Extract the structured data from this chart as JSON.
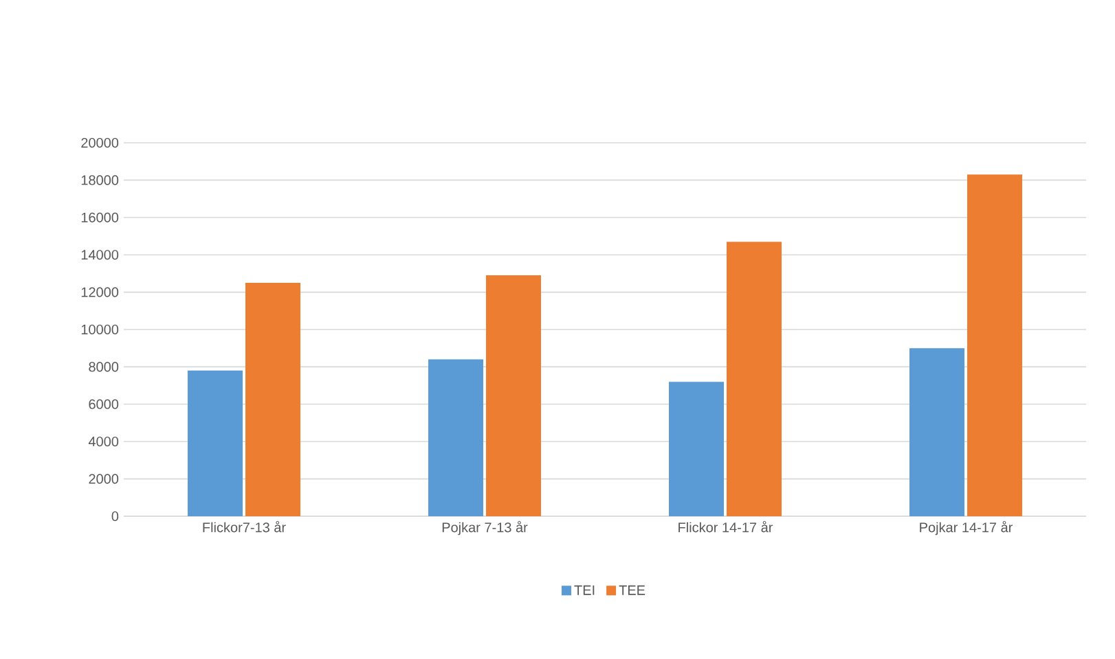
{
  "chart_data": {
    "type": "bar",
    "categories": [
      "Flickor7-13 år",
      "Pojkar 7-13 år",
      "Flickor 14-17 år",
      "Pojkar 14-17 år"
    ],
    "series": [
      {
        "name": "TEI",
        "color": "#5b9bd5",
        "values": [
          7800,
          8400,
          7200,
          9000
        ]
      },
      {
        "name": "TEE",
        "color": "#ed7d31",
        "values": [
          12500,
          12900,
          14700,
          18300
        ]
      }
    ],
    "ylim": [
      0,
      20000
    ],
    "yticks": [
      0,
      2000,
      4000,
      6000,
      8000,
      10000,
      12000,
      14000,
      16000,
      18000,
      20000
    ],
    "grid": "y",
    "legend": "bottom"
  }
}
